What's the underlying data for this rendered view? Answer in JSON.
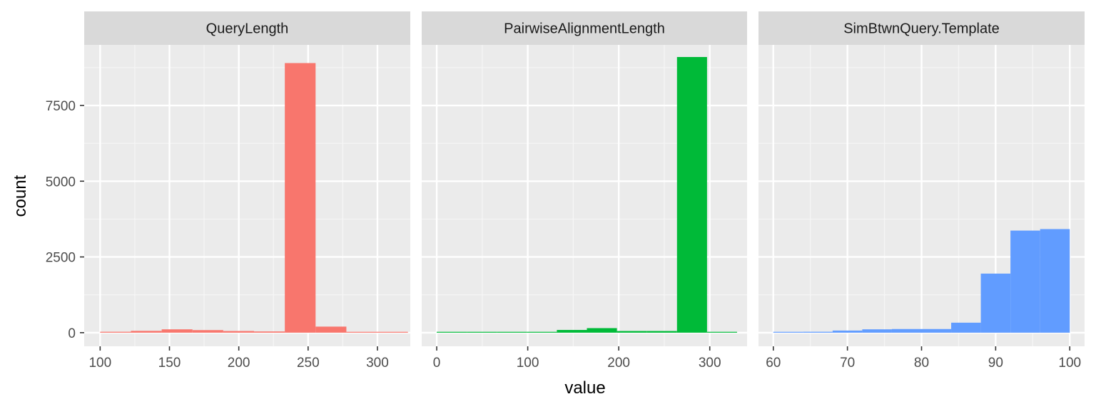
{
  "chart_data": {
    "type": "bar",
    "xlabel": "value",
    "ylabel": "count",
    "ylim": [
      -450,
      9500
    ],
    "y_ticks": [
      0,
      2500,
      5000,
      7500
    ],
    "y_tick_labels": [
      "0",
      "2500",
      "5000",
      "7500"
    ],
    "grid": true,
    "legend": "none",
    "facet_layout": "1 row x 3 columns, shared y axis, free x axes",
    "panels": [
      {
        "title": "QueryLength",
        "color": "#F8766D",
        "xlim": [
          88.5,
          323.7
        ],
        "x_ticks": [
          100,
          150,
          200,
          250,
          300
        ],
        "x_tick_labels": [
          "100",
          "150",
          "200",
          "250",
          "300"
        ],
        "bins": [
          {
            "x0": 100.0,
            "x1": 122.2,
            "count": 30
          },
          {
            "x0": 122.2,
            "x1": 144.4,
            "count": 60
          },
          {
            "x0": 144.4,
            "x1": 166.6,
            "count": 110
          },
          {
            "x0": 166.6,
            "x1": 188.8,
            "count": 85
          },
          {
            "x0": 188.8,
            "x1": 211.0,
            "count": 55
          },
          {
            "x0": 211.0,
            "x1": 233.2,
            "count": 40
          },
          {
            "x0": 233.2,
            "x1": 255.4,
            "count": 8900
          },
          {
            "x0": 255.4,
            "x1": 277.6,
            "count": 200
          },
          {
            "x0": 277.6,
            "x1": 299.8,
            "count": 10
          },
          {
            "x0": 299.8,
            "x1": 322.0,
            "count": 0
          }
        ]
      },
      {
        "title": "PairwiseAlignmentLength",
        "color": "#00BA38",
        "xlim": [
          -16.5,
          341
        ],
        "x_ticks": [
          0,
          100,
          200,
          300
        ],
        "x_tick_labels": [
          "0",
          "100",
          "200",
          "300"
        ],
        "bins": [
          {
            "x0": 0,
            "x1": 33,
            "count": 0
          },
          {
            "x0": 33,
            "x1": 66,
            "count": 0
          },
          {
            "x0": 66,
            "x1": 99,
            "count": 0
          },
          {
            "x0": 99,
            "x1": 132,
            "count": 5
          },
          {
            "x0": 132,
            "x1": 165,
            "count": 90
          },
          {
            "x0": 165,
            "x1": 198,
            "count": 150
          },
          {
            "x0": 198,
            "x1": 231,
            "count": 55
          },
          {
            "x0": 231,
            "x1": 264,
            "count": 55
          },
          {
            "x0": 264,
            "x1": 297,
            "count": 9100
          },
          {
            "x0": 297,
            "x1": 330,
            "count": 5
          }
        ]
      },
      {
        "title": "SimBtwnQuery.Template",
        "color": "#619CFF",
        "xlim": [
          58,
          102
        ],
        "x_ticks": [
          60,
          70,
          80,
          90,
          100
        ],
        "x_tick_labels": [
          "60",
          "70",
          "80",
          "90",
          "100"
        ],
        "bins": [
          {
            "x0": 60,
            "x1": 64,
            "count": 10
          },
          {
            "x0": 64,
            "x1": 68,
            "count": 30
          },
          {
            "x0": 68,
            "x1": 72,
            "count": 70
          },
          {
            "x0": 72,
            "x1": 76,
            "count": 110
          },
          {
            "x0": 76,
            "x1": 80,
            "count": 120
          },
          {
            "x0": 80,
            "x1": 84,
            "count": 120
          },
          {
            "x0": 84,
            "x1": 88,
            "count": 330
          },
          {
            "x0": 88,
            "x1": 92,
            "count": 1950
          },
          {
            "x0": 92,
            "x1": 96,
            "count": 3370
          },
          {
            "x0": 96,
            "x1": 100,
            "count": 3420
          }
        ]
      }
    ]
  }
}
